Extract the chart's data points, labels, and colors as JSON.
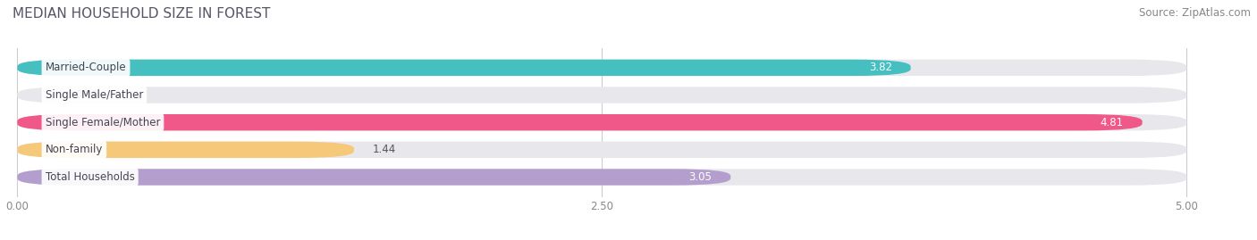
{
  "title": "MEDIAN HOUSEHOLD SIZE IN FOREST",
  "source": "Source: ZipAtlas.com",
  "categories": [
    "Married-Couple",
    "Single Male/Father",
    "Single Female/Mother",
    "Non-family",
    "Total Households"
  ],
  "values": [
    3.82,
    0.0,
    4.81,
    1.44,
    3.05
  ],
  "bar_colors": [
    "#45bfc0",
    "#a8b8e8",
    "#f0588a",
    "#f5c87a",
    "#b49ece"
  ],
  "background_color": "#ffffff",
  "bar_bg_color": "#e8e8ec",
  "xlim": [
    0,
    5.0
  ],
  "xticks": [
    0.0,
    2.5,
    5.0
  ],
  "xtick_labels": [
    "0.00",
    "2.50",
    "5.00"
  ],
  "title_fontsize": 11,
  "source_fontsize": 8.5,
  "label_fontsize": 8.5,
  "value_fontsize": 8.5,
  "value_colors_inside": [
    "#ffffff",
    "#ffffff",
    "#ffffff",
    "#555555",
    "#ffffff"
  ],
  "value_positions_inside": [
    true,
    false,
    true,
    false,
    true
  ]
}
